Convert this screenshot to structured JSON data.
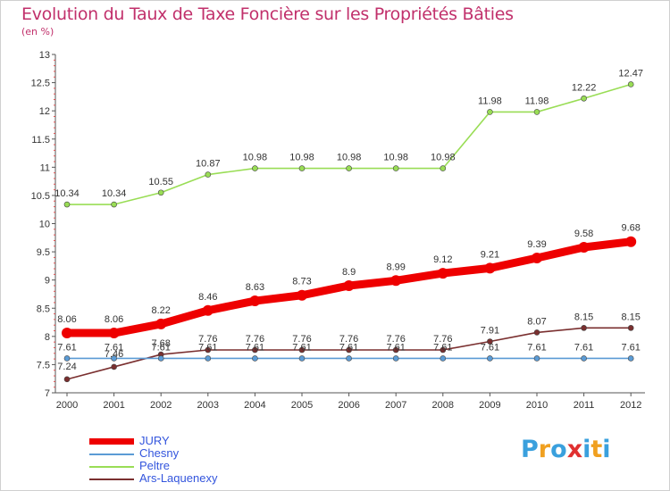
{
  "header": {
    "title": "Evolution du Taux de Taxe Foncière sur les Propriétés Bâties",
    "unit": "(en %)"
  },
  "logo": {
    "text": "Proxiti",
    "letter_colors": [
      "#3aa0dd",
      "#f0a020",
      "#3aa0dd",
      "#e03030",
      "#3aa0dd",
      "#f0a020",
      "#3aa0dd"
    ]
  },
  "chart_data": {
    "type": "line",
    "title": "Evolution du Taux de Taxe Foncière sur les Propriétés Bâties",
    "ylabel": "(en %)",
    "xlabel": "",
    "x": [
      "2000",
      "2001",
      "2002",
      "2003",
      "2004",
      "2005",
      "2006",
      "2007",
      "2008",
      "2009",
      "2010",
      "2011",
      "2012"
    ],
    "ylim": [
      7,
      13
    ],
    "yticks": [
      "7",
      "7.5",
      "8",
      "8.5",
      "9",
      "9.5",
      "10",
      "10.5",
      "11",
      "11.5",
      "12",
      "12.5",
      "13"
    ],
    "grid": false,
    "legend_position": "bottom-left",
    "series": [
      {
        "name": "JURY",
        "color": "#ee0000",
        "thick": true,
        "values": [
          8.06,
          8.06,
          8.22,
          8.46,
          8.63,
          8.73,
          8.9,
          8.99,
          9.12,
          9.21,
          9.39,
          9.58,
          9.68
        ],
        "labels": [
          "8.06",
          "8.06",
          "8.22",
          "8.46",
          "8.63",
          "8.73",
          "8.9",
          "8.99",
          "9.12",
          "9.21",
          "9.39",
          "9.58",
          "9.68"
        ]
      },
      {
        "name": "Chesny",
        "color": "#5b9bd5",
        "thick": false,
        "values": [
          7.61,
          7.61,
          7.61,
          7.61,
          7.61,
          7.61,
          7.61,
          7.61,
          7.61,
          7.61,
          7.61,
          7.61,
          7.61
        ],
        "labels": [
          "7.61",
          "7.61",
          "7.61",
          "7.61",
          "7.61",
          "7.61",
          "7.61",
          "7.61",
          "7.61",
          "7.61",
          "7.61",
          "7.61",
          "7.61"
        ]
      },
      {
        "name": "Peltre",
        "color": "#99dd55",
        "thick": false,
        "values": [
          10.34,
          10.34,
          10.55,
          10.87,
          10.98,
          10.98,
          10.98,
          10.98,
          10.98,
          11.98,
          11.98,
          12.22,
          12.47
        ],
        "labels": [
          "10.34",
          "10.34",
          "10.55",
          "10.87",
          "10.98",
          "10.98",
          "10.98",
          "10.98",
          "10.98",
          "11.98",
          "11.98",
          "12.22",
          "12.47"
        ]
      },
      {
        "name": "Ars-Laquenexy",
        "color": "#7a2f2f",
        "thick": false,
        "values": [
          7.24,
          7.46,
          7.68,
          7.76,
          7.76,
          7.76,
          7.76,
          7.76,
          7.76,
          7.91,
          8.07,
          8.15,
          8.15
        ],
        "labels": [
          "7.24",
          "7.46",
          "7.68",
          "7.76",
          "7.76",
          "7.76",
          "7.76",
          "7.76",
          "7.76",
          "7.91",
          "8.07",
          "8.15",
          "8.15"
        ]
      }
    ]
  }
}
